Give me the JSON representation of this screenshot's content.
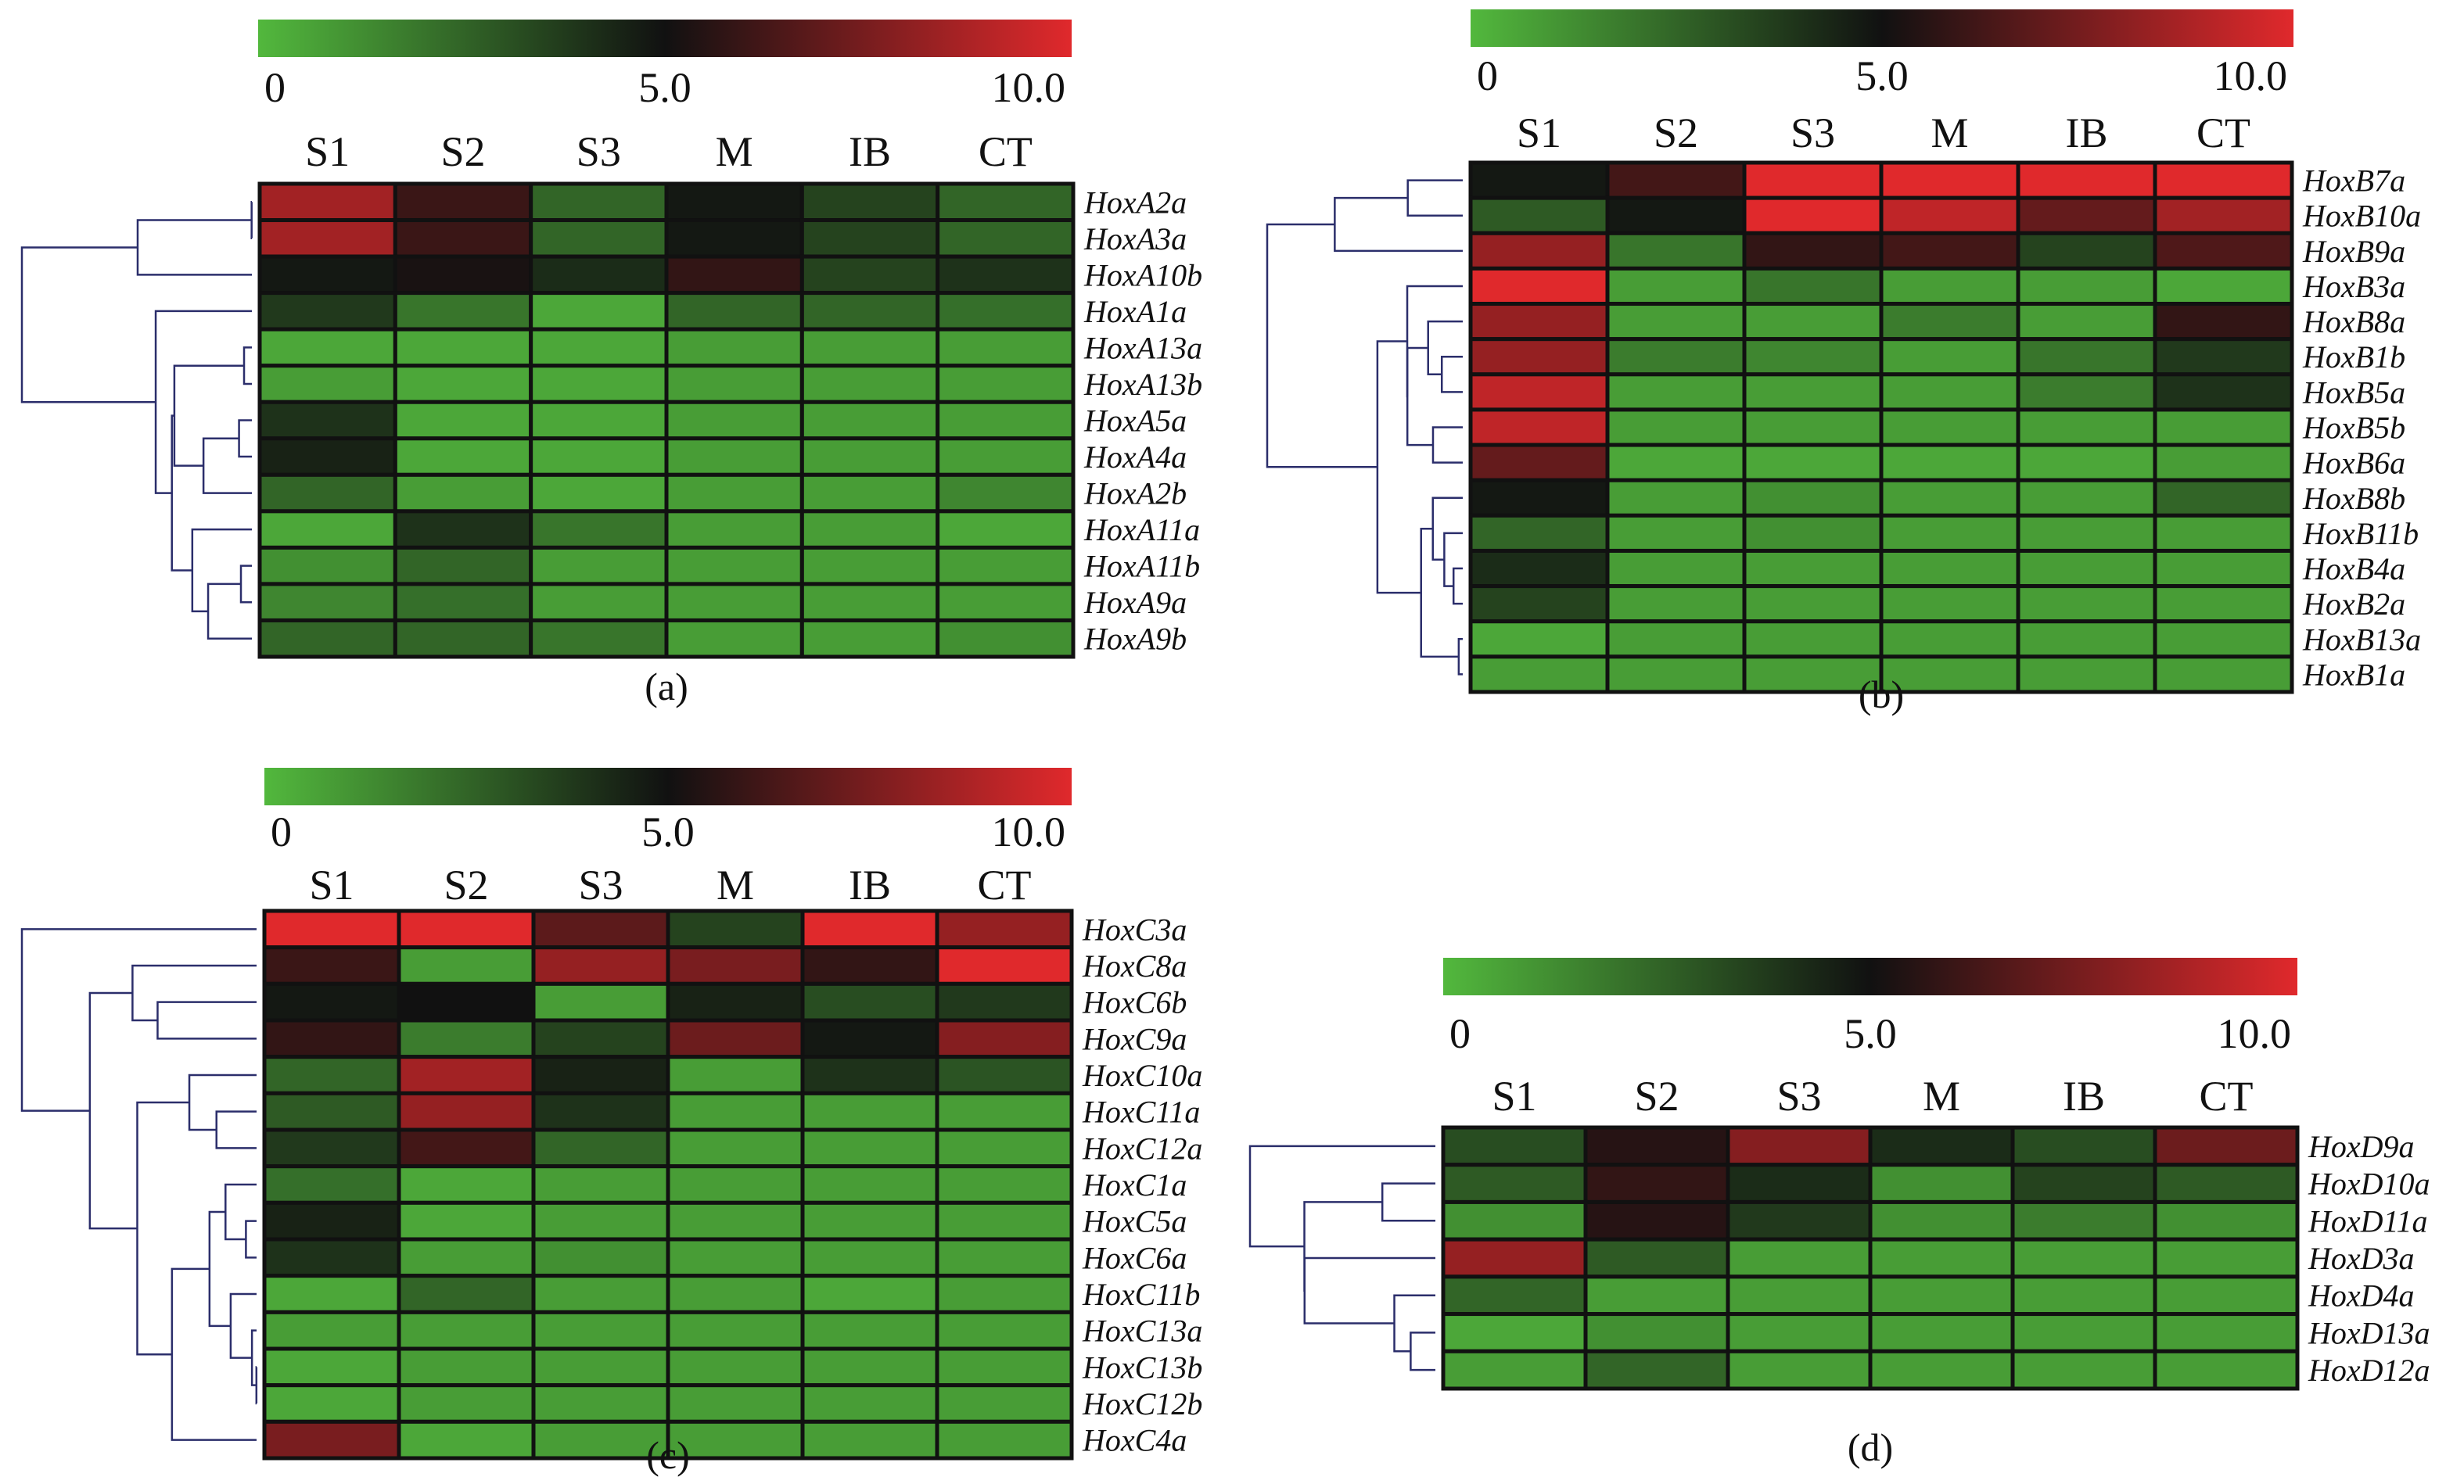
{
  "colorbar": {
    "ticks": [
      "0",
      "5.0",
      "10.0"
    ],
    "min": 0,
    "max": 10,
    "colors": {
      "low": "#52b83d",
      "mid": "#111111",
      "high": "#e0292c"
    }
  },
  "chart_data": [
    {
      "type": "heatmap",
      "panel_label": "(a)",
      "columns": [
        "S1",
        "S2",
        "S3",
        "M",
        "IB",
        "CT"
      ],
      "rows": [
        "HoxA2a",
        "HoxA3a",
        "HoxA10b",
        "HoxA1a",
        "HoxA13a",
        "HoxA13b",
        "HoxA5a",
        "HoxA4a",
        "HoxA2b",
        "HoxA11a",
        "HoxA11b",
        "HoxA9a",
        "HoxA9b"
      ],
      "values": [
        [
          8.5,
          6.0,
          2.5,
          4.8,
          3.5,
          2.5
        ],
        [
          8.5,
          6.0,
          2.5,
          4.8,
          3.5,
          2.5
        ],
        [
          4.8,
          5.2,
          4.2,
          5.8,
          3.5,
          4.0
        ],
        [
          3.8,
          2.0,
          0.5,
          2.5,
          2.5,
          2.2
        ],
        [
          0.5,
          0.5,
          0.5,
          0.8,
          0.8,
          0.8
        ],
        [
          0.8,
          0.5,
          0.5,
          0.8,
          0.8,
          0.8
        ],
        [
          4.0,
          0.5,
          0.5,
          0.8,
          0.8,
          0.8
        ],
        [
          4.5,
          0.5,
          0.5,
          0.8,
          0.8,
          0.8
        ],
        [
          2.5,
          0.8,
          0.5,
          0.8,
          0.8,
          1.5
        ],
        [
          0.5,
          4.0,
          2.0,
          0.8,
          0.8,
          0.5
        ],
        [
          1.2,
          2.5,
          0.8,
          0.8,
          0.8,
          0.8
        ],
        [
          1.5,
          2.2,
          0.8,
          0.8,
          0.8,
          0.8
        ],
        [
          2.5,
          2.5,
          2.0,
          0.8,
          0.8,
          1.2
        ]
      ]
    },
    {
      "type": "heatmap",
      "panel_label": "(b)",
      "columns": [
        "S1",
        "S2",
        "S3",
        "M",
        "IB",
        "CT"
      ],
      "rows": [
        "HoxB7a",
        "HoxB10a",
        "HoxB9a",
        "HoxB3a",
        "HoxB8a",
        "HoxB1b",
        "HoxB5a",
        "HoxB5b",
        "HoxB6a",
        "HoxB8b",
        "HoxB11b",
        "HoxB4a",
        "HoxB2a",
        "HoxB13a",
        "HoxB1a"
      ],
      "values": [
        [
          4.8,
          6.2,
          10.0,
          10.0,
          10.0,
          10.0
        ],
        [
          2.8,
          4.8,
          10.0,
          9.2,
          7.0,
          8.5
        ],
        [
          8.2,
          2.0,
          5.8,
          6.2,
          3.5,
          6.5
        ],
        [
          10.0,
          0.8,
          2.0,
          0.8,
          0.8,
          0.5
        ],
        [
          8.2,
          0.8,
          0.8,
          1.8,
          0.8,
          5.8
        ],
        [
          8.2,
          1.8,
          1.5,
          0.8,
          2.0,
          3.8
        ],
        [
          9.2,
          0.8,
          0.8,
          0.8,
          1.8,
          4.0
        ],
        [
          9.2,
          0.8,
          0.8,
          0.8,
          0.8,
          0.8
        ],
        [
          7.0,
          0.5,
          0.5,
          0.5,
          0.5,
          0.8
        ],
        [
          4.8,
          0.8,
          1.2,
          0.8,
          0.8,
          2.5
        ],
        [
          2.5,
          0.8,
          1.2,
          0.8,
          0.8,
          0.8
        ],
        [
          4.2,
          0.8,
          0.8,
          0.8,
          0.8,
          0.8
        ],
        [
          3.5,
          0.8,
          0.8,
          0.8,
          0.8,
          0.8
        ],
        [
          0.5,
          0.8,
          0.8,
          0.8,
          0.8,
          0.8
        ],
        [
          0.8,
          0.8,
          0.8,
          0.8,
          0.8,
          0.8
        ]
      ]
    },
    {
      "type": "heatmap",
      "panel_label": "(c)",
      "columns": [
        "S1",
        "S2",
        "S3",
        "M",
        "IB",
        "CT"
      ],
      "rows": [
        "HoxC3a",
        "HoxC8a",
        "HoxC6b",
        "HoxC9a",
        "HoxC10a",
        "HoxC11a",
        "HoxC12a",
        "HoxC1a",
        "HoxC5a",
        "HoxC6a",
        "HoxC11b",
        "HoxC13a",
        "HoxC13b",
        "HoxC12b",
        "HoxC4a"
      ],
      "values": [
        [
          10.0,
          10.0,
          6.8,
          3.5,
          10.0,
          8.2
        ],
        [
          6.0,
          0.8,
          8.2,
          7.5,
          5.8,
          10.0
        ],
        [
          4.8,
          5.0,
          0.8,
          4.5,
          3.2,
          3.8
        ],
        [
          5.8,
          1.8,
          3.5,
          7.2,
          4.8,
          7.8
        ],
        [
          2.5,
          8.5,
          4.5,
          0.8,
          4.0,
          3.0
        ],
        [
          2.8,
          8.2,
          4.0,
          0.8,
          0.8,
          0.8
        ],
        [
          3.8,
          6.2,
          2.5,
          0.8,
          0.8,
          0.8
        ],
        [
          2.2,
          0.5,
          0.8,
          0.8,
          0.8,
          0.8
        ],
        [
          4.5,
          0.5,
          0.8,
          0.8,
          0.8,
          0.8
        ],
        [
          4.0,
          0.8,
          1.2,
          0.8,
          0.8,
          0.8
        ],
        [
          0.5,
          2.5,
          0.8,
          0.8,
          0.5,
          0.8
        ],
        [
          0.8,
          0.8,
          0.8,
          0.8,
          0.8,
          0.8
        ],
        [
          0.5,
          0.8,
          0.8,
          0.8,
          0.8,
          0.8
        ],
        [
          0.5,
          0.8,
          0.8,
          0.8,
          0.8,
          0.8
        ],
        [
          7.5,
          0.5,
          0.8,
          0.8,
          0.8,
          0.8
        ]
      ]
    },
    {
      "type": "heatmap",
      "panel_label": "(d)",
      "columns": [
        "S1",
        "S2",
        "S3",
        "M",
        "IB",
        "CT"
      ],
      "rows": [
        "HoxD9a",
        "HoxD10a",
        "HoxD11a",
        "HoxD3a",
        "HoxD4a",
        "HoxD13a",
        "HoxD12a"
      ],
      "values": [
        [
          3.2,
          5.5,
          7.8,
          4.2,
          3.2,
          7.2
        ],
        [
          2.8,
          5.8,
          4.2,
          1.2,
          3.5,
          2.8
        ],
        [
          1.2,
          5.5,
          3.8,
          1.2,
          1.8,
          1.2
        ],
        [
          8.2,
          2.8,
          0.8,
          0.8,
          0.8,
          0.8
        ],
        [
          2.5,
          0.8,
          0.8,
          0.8,
          0.8,
          0.8
        ],
        [
          0.5,
          1.2,
          0.8,
          0.8,
          0.8,
          0.8
        ],
        [
          0.8,
          2.5,
          0.8,
          0.8,
          0.8,
          0.8
        ]
      ]
    }
  ]
}
